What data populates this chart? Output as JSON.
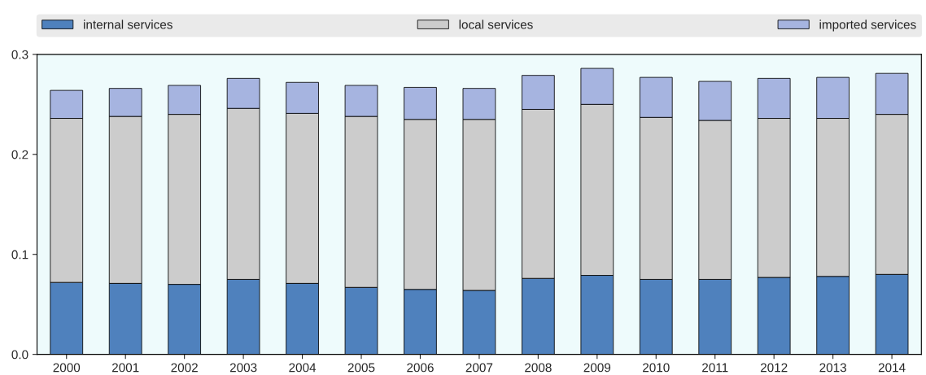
{
  "chart_data": {
    "type": "bar",
    "stacked": true,
    "categories": [
      "2000",
      "2001",
      "2002",
      "2003",
      "2004",
      "2005",
      "2006",
      "2007",
      "2008",
      "2009",
      "2010",
      "2011",
      "2012",
      "2013",
      "2014"
    ],
    "series": [
      {
        "name": "internal services",
        "color": "#4f81bd",
        "values": [
          0.072,
          0.071,
          0.07,
          0.075,
          0.071,
          0.067,
          0.065,
          0.064,
          0.076,
          0.079,
          0.075,
          0.075,
          0.077,
          0.078,
          0.08
        ]
      },
      {
        "name": "local services",
        "color": "#cccccc",
        "values": [
          0.164,
          0.167,
          0.17,
          0.171,
          0.17,
          0.171,
          0.17,
          0.171,
          0.169,
          0.171,
          0.162,
          0.159,
          0.159,
          0.158,
          0.16
        ]
      },
      {
        "name": "imported services",
        "color": "#a6b4e0",
        "values": [
          0.028,
          0.028,
          0.029,
          0.03,
          0.031,
          0.031,
          0.032,
          0.031,
          0.034,
          0.036,
          0.04,
          0.039,
          0.04,
          0.041,
          0.041
        ]
      }
    ],
    "ylim": [
      0,
      0.3
    ],
    "yticks": [
      {
        "value": 0,
        "label": "0.0"
      },
      0.1,
      0.2,
      0.3
    ],
    "legend": "top",
    "grid": false
  }
}
